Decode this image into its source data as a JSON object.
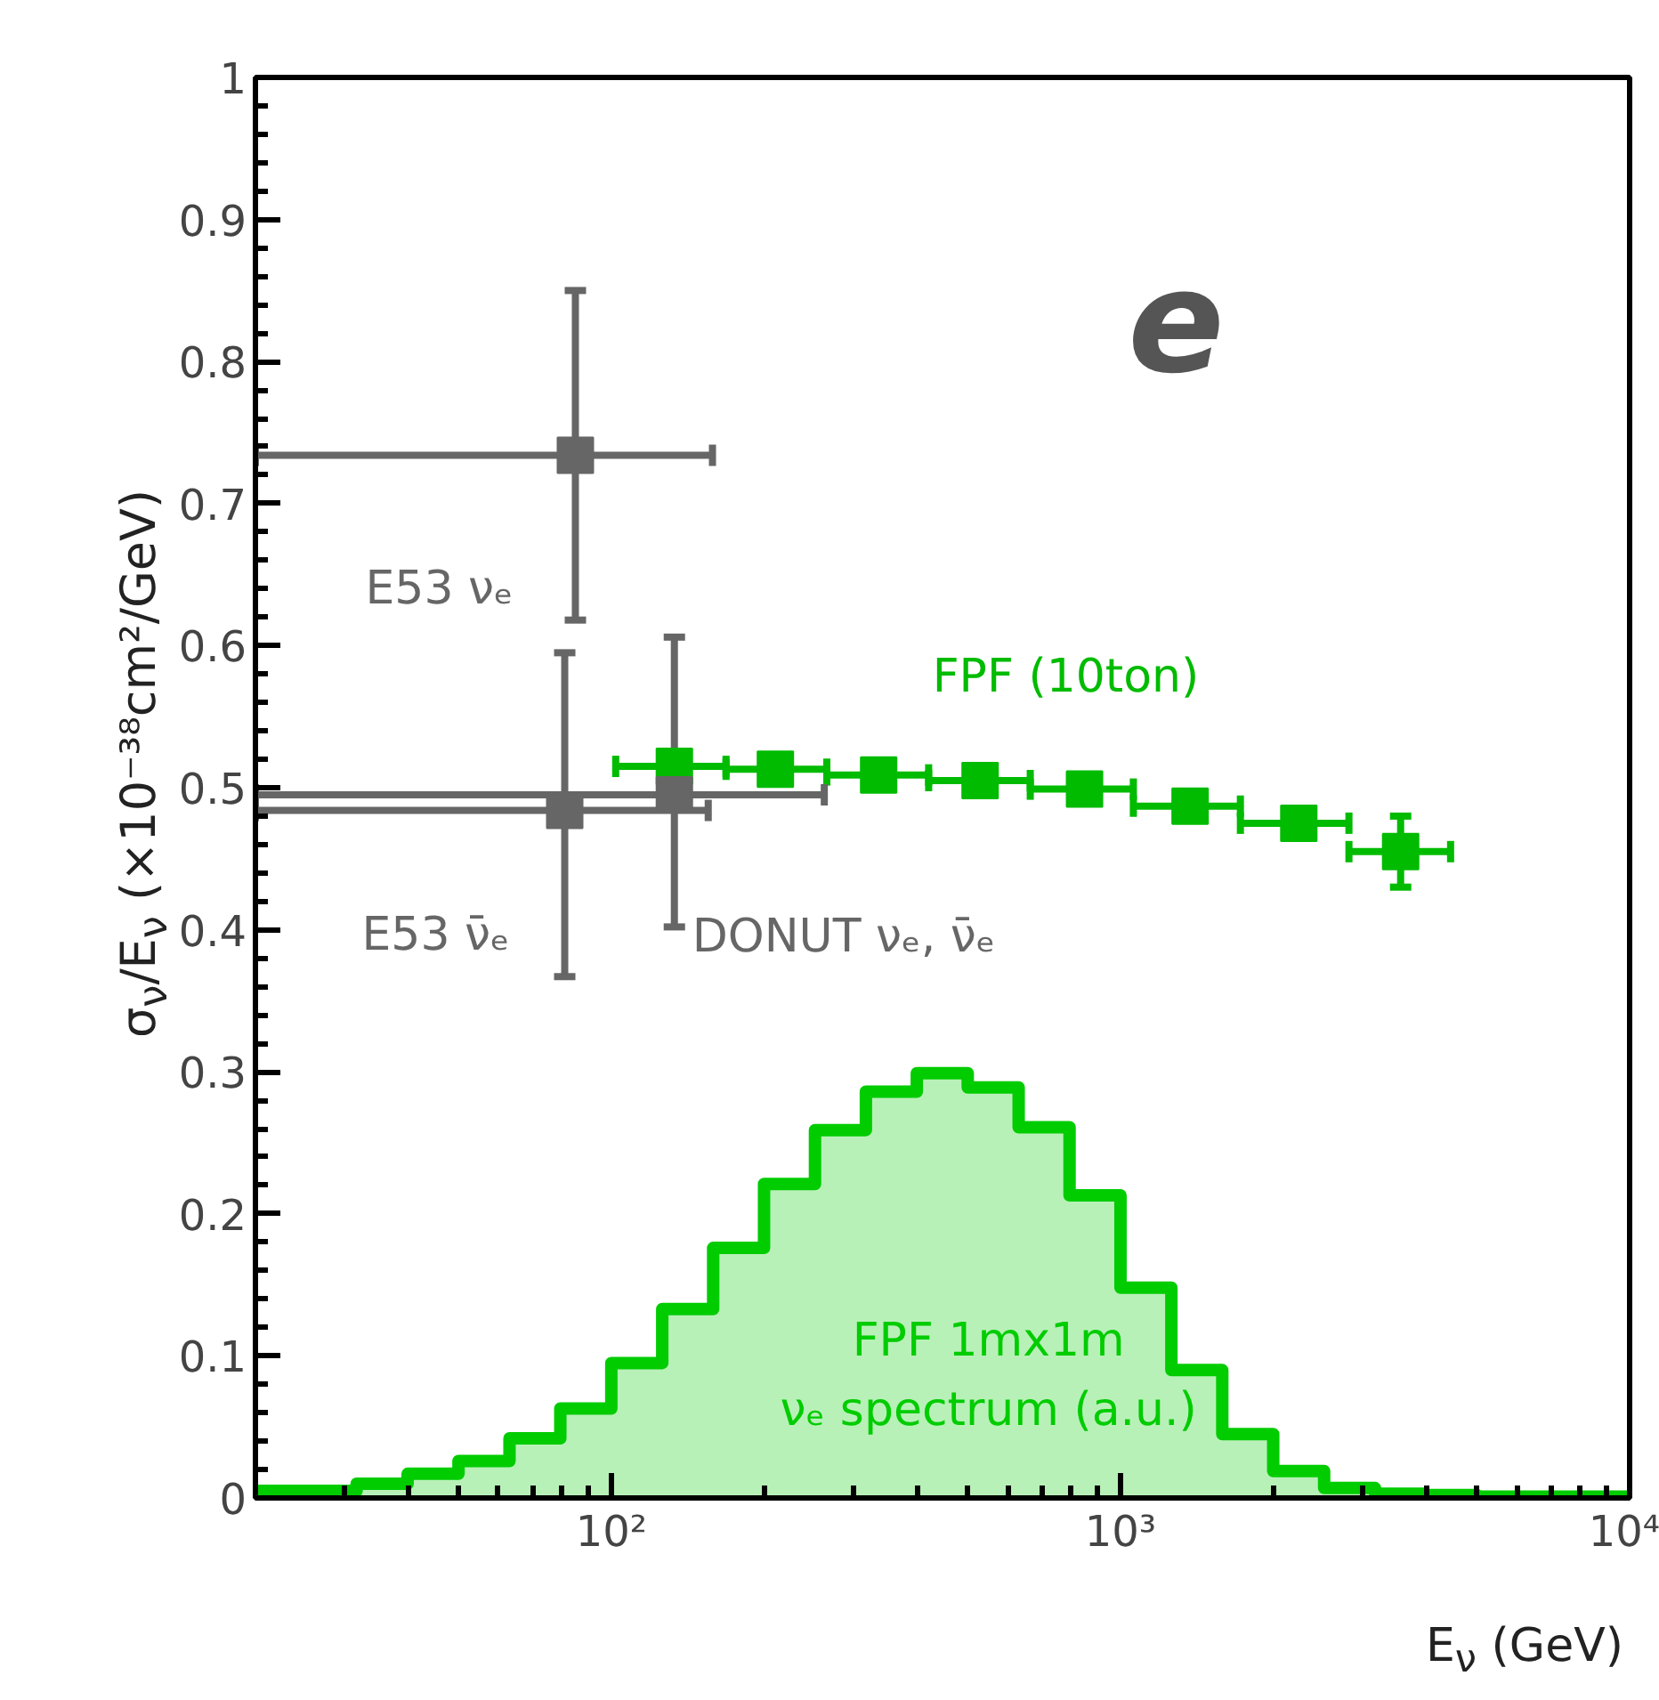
{
  "chart_data": {
    "type": "scatter",
    "xlabel": "E$_{ν}$ (GeV)",
    "ylabel": "σ$_{ν}$/E$_{ν}$ (×10⁻³⁸cm²/GeV)",
    "annotations": [
      "e"
    ],
    "log": "x",
    "xlim": [
      20,
      10000
    ],
    "xticks": [
      {
        "value": 100,
        "label": "10²"
      },
      {
        "value": 1000,
        "label": "10³"
      },
      {
        "value": 10000,
        "label": "10⁴"
      }
    ],
    "ylim": [
      0,
      1
    ],
    "yticks": [
      0,
      0.1,
      0.2,
      0.3,
      0.4,
      0.5,
      0.6,
      0.7,
      0.8,
      0.9,
      1
    ],
    "grid": false,
    "marker": "square",
    "series": [
      {
        "type": "histogram",
        "name": "FPF 1mx1m\nνₑ spectrum (a.u.)",
        "color": "#00cc00",
        "bins": [
          20,
          25.1,
          31.6,
          39.8,
          50.1,
          63.1,
          79.4,
          100,
          125.9,
          158.5,
          199.5,
          251.2,
          316.2,
          398.1,
          501.2,
          631,
          794.3,
          1000,
          1258.9,
          1584.9,
          1995.3,
          2511.9,
          3162.3,
          3981.1,
          5011.9,
          6309.6,
          7943.3,
          10000
        ],
        "values": [
          0.005,
          0.005,
          0.01,
          0.017,
          0.026,
          0.042,
          0.063,
          0.095,
          0.133,
          0.176,
          0.221,
          0.259,
          0.286,
          0.299,
          0.289,
          0.261,
          0.213,
          0.148,
          0.09,
          0.045,
          0.019,
          0.007,
          0.003,
          0.002,
          0.001,
          0.001,
          0.001
        ]
      },
      {
        "name": "FPF (10ton)",
        "color": "#00bb00",
        "x": [
          133,
          210,
          335,
          530,
          850,
          1370,
          2240,
          3550
        ],
        "values": [
          0.515,
          0.513,
          0.509,
          0.505,
          0.499,
          0.487,
          0.475,
          0.455
        ],
        "errors": [
          null,
          null,
          null,
          null,
          null,
          null,
          null,
          0.025
        ],
        "xerrors": [
          [
            102,
            168
          ],
          [
            168,
            265
          ],
          [
            265,
            420
          ],
          [
            420,
            665
          ],
          [
            665,
            1060
          ],
          [
            1060,
            1720
          ],
          [
            1720,
            2810
          ],
          [
            2810,
            4450
          ]
        ]
      },
      {
        "name": "E53 νₑ",
        "color": "#666666",
        "x": [
          85
        ],
        "values": [
          0.734
        ],
        "errors": [
          [
            0.618,
            0.85
          ]
        ],
        "xerrors": [
          [
            20,
            158
          ]
        ]
      },
      {
        "name": "E53 ν̄ₑ",
        "color": "#666666",
        "x": [
          81
        ],
        "values": [
          0.484
        ],
        "errors": [
          [
            0.367,
            0.595
          ]
        ],
        "xerrors": [
          [
            20,
            155
          ]
        ]
      },
      {
        "name": "DONUT νₑ, ν̄ₑ",
        "color": "#666666",
        "x": [
          133
        ],
        "values": [
          0.495
        ],
        "errors": [
          [
            0.402,
            0.606
          ]
        ],
        "xerrors": [
          [
            20,
            262
          ]
        ]
      }
    ]
  }
}
